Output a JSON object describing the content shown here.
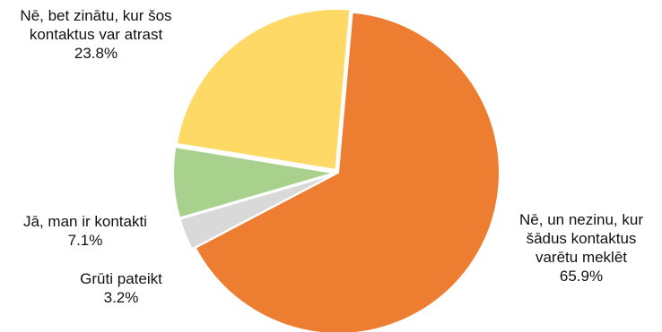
{
  "chart_data": {
    "type": "pie",
    "start_angle_deg": 5,
    "direction": "clockwise",
    "slices": [
      {
        "label": [
          "Nē, un nezinu, kur",
          "šādus kontaktus",
          "varētu meklēt"
        ],
        "value": 65.9,
        "value_label": "65.9%",
        "color": "#ED7D31",
        "exploded": false
      },
      {
        "label": [
          "Grūti pateikt"
        ],
        "value": 3.2,
        "value_label": "3.2%",
        "color": "#D9D9D9",
        "exploded": true
      },
      {
        "label": [
          "Jā, man ir kontakti"
        ],
        "value": 7.1,
        "value_label": "7.1%",
        "color": "#A9D18E",
        "exploded": true
      },
      {
        "label": [
          "Nē, bet zinātu, kur šos",
          "kontaktus var atrast"
        ],
        "value": 23.8,
        "value_label": "23.8%",
        "color": "#FFD966",
        "exploded": true
      }
    ]
  }
}
